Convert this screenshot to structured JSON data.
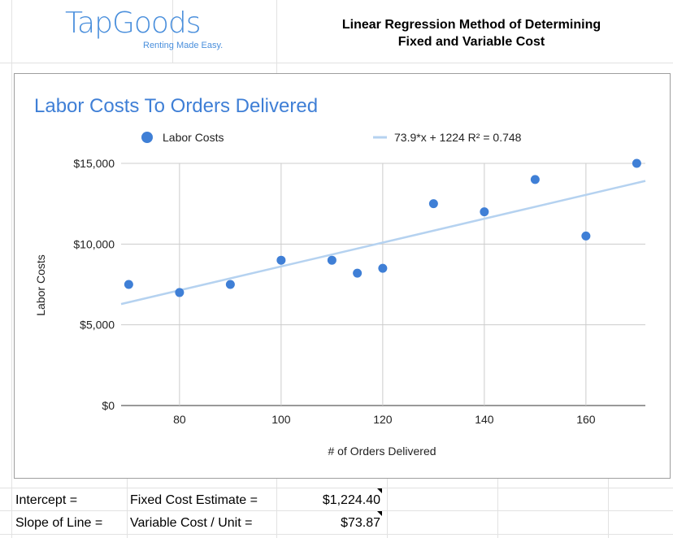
{
  "logo": {
    "name": "TapGoods",
    "tagline": "Renting Made Easy."
  },
  "header": {
    "title_line1": "Linear Regression Method of Determining",
    "title_line2": "Fixed and Variable Cost"
  },
  "summary": [
    {
      "label": "Intercept =",
      "desc": "Fixed Cost Estimate =",
      "value": "$1,224.40"
    },
    {
      "label": "Slope of Line =",
      "desc": "Variable Cost / Unit =",
      "value": "$73.87"
    }
  ],
  "chart_data": {
    "type": "scatter",
    "title": "Labor Costs To Orders Delivered",
    "xlabel": "# of Orders Delivered",
    "ylabel": "Labor Costs",
    "xlim": [
      68.5,
      171.7
    ],
    "ylim": [
      0,
      15000
    ],
    "xticks": [
      80,
      100,
      120,
      140,
      160
    ],
    "yticks": [
      0,
      5000,
      10000,
      15000
    ],
    "ytick_labels": [
      "$0",
      "$5,000",
      "$10,000",
      "$15,000"
    ],
    "grid": true,
    "legend_position": "top",
    "series": [
      {
        "name": "Labor Costs",
        "color": "#3f7fd6",
        "x": [
          70,
          80,
          90,
          100,
          110,
          115,
          120,
          130,
          140,
          150,
          160,
          170
        ],
        "y": [
          7500,
          7000,
          7500,
          9000,
          9000,
          8200,
          8500,
          12500,
          12000,
          14000,
          10500,
          15000
        ]
      }
    ],
    "trendline": {
      "label": "73.9*x + 1224 R² = 0.748",
      "slope": 73.9,
      "intercept": 1224,
      "color": "#b5d2f0"
    }
  }
}
